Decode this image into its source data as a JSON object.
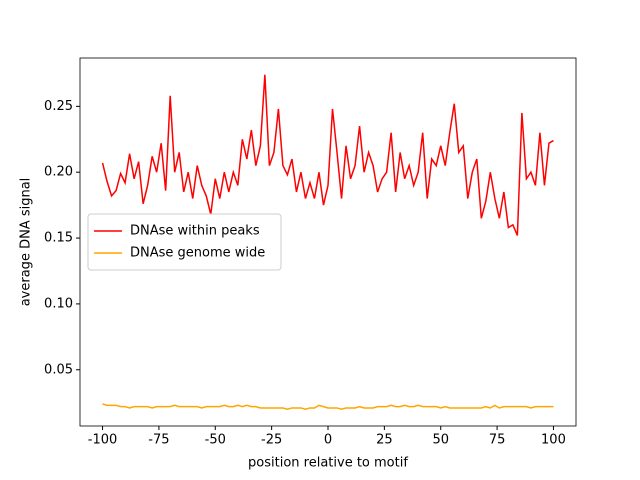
{
  "chart_data": {
    "type": "line",
    "xlabel": "position relative to motif",
    "ylabel": "average DNA signal",
    "x": [
      -100,
      -98,
      -96,
      -94,
      -92,
      -90,
      -88,
      -86,
      -84,
      -82,
      -80,
      -78,
      -76,
      -74,
      -72,
      -70,
      -68,
      -66,
      -64,
      -62,
      -60,
      -58,
      -56,
      -54,
      -52,
      -50,
      -48,
      -46,
      -44,
      -42,
      -40,
      -38,
      -36,
      -34,
      -32,
      -30,
      -28,
      -26,
      -24,
      -22,
      -20,
      -18,
      -16,
      -14,
      -12,
      -10,
      -8,
      -6,
      -4,
      -2,
      0,
      2,
      4,
      6,
      8,
      10,
      12,
      14,
      16,
      18,
      20,
      22,
      24,
      26,
      28,
      30,
      32,
      34,
      36,
      38,
      40,
      42,
      44,
      46,
      48,
      50,
      52,
      54,
      56,
      58,
      60,
      62,
      64,
      66,
      68,
      70,
      72,
      74,
      76,
      78,
      80,
      82,
      84,
      86,
      88,
      90,
      92,
      94,
      96,
      98,
      100
    ],
    "series": [
      {
        "name": "DNAse within peaks",
        "color": "#ff0000",
        "values": [
          0.207,
          0.193,
          0.182,
          0.186,
          0.199,
          0.192,
          0.214,
          0.195,
          0.208,
          0.176,
          0.19,
          0.212,
          0.2,
          0.222,
          0.186,
          0.258,
          0.2,
          0.215,
          0.185,
          0.2,
          0.18,
          0.205,
          0.19,
          0.182,
          0.168,
          0.195,
          0.18,
          0.2,
          0.185,
          0.2,
          0.19,
          0.225,
          0.21,
          0.232,
          0.205,
          0.22,
          0.274,
          0.205,
          0.215,
          0.248,
          0.205,
          0.198,
          0.21,
          0.185,
          0.2,
          0.18,
          0.192,
          0.18,
          0.2,
          0.175,
          0.19,
          0.248,
          0.215,
          0.18,
          0.22,
          0.195,
          0.205,
          0.235,
          0.2,
          0.215,
          0.205,
          0.185,
          0.195,
          0.2,
          0.23,
          0.185,
          0.215,
          0.195,
          0.205,
          0.19,
          0.2,
          0.23,
          0.18,
          0.21,
          0.205,
          0.22,
          0.205,
          0.23,
          0.252,
          0.215,
          0.22,
          0.18,
          0.2,
          0.21,
          0.165,
          0.178,
          0.2,
          0.18,
          0.165,
          0.185,
          0.158,
          0.16,
          0.152,
          0.245,
          0.195,
          0.2,
          0.19,
          0.23,
          0.19,
          0.222,
          0.224
        ]
      },
      {
        "name": "DNAse genome wide",
        "color": "#ffa500",
        "values": [
          0.024,
          0.023,
          0.023,
          0.023,
          0.022,
          0.022,
          0.021,
          0.022,
          0.022,
          0.022,
          0.022,
          0.021,
          0.022,
          0.022,
          0.022,
          0.022,
          0.023,
          0.022,
          0.022,
          0.022,
          0.022,
          0.022,
          0.021,
          0.022,
          0.022,
          0.022,
          0.022,
          0.023,
          0.022,
          0.022,
          0.023,
          0.022,
          0.023,
          0.022,
          0.022,
          0.021,
          0.021,
          0.021,
          0.021,
          0.021,
          0.021,
          0.02,
          0.021,
          0.021,
          0.021,
          0.02,
          0.021,
          0.021,
          0.023,
          0.022,
          0.021,
          0.021,
          0.021,
          0.02,
          0.021,
          0.021,
          0.021,
          0.022,
          0.021,
          0.021,
          0.021,
          0.022,
          0.022,
          0.022,
          0.023,
          0.022,
          0.022,
          0.023,
          0.022,
          0.022,
          0.023,
          0.022,
          0.022,
          0.022,
          0.022,
          0.021,
          0.022,
          0.021,
          0.021,
          0.021,
          0.021,
          0.021,
          0.021,
          0.021,
          0.021,
          0.022,
          0.021,
          0.023,
          0.021,
          0.022,
          0.022,
          0.022,
          0.022,
          0.022,
          0.022,
          0.021,
          0.022,
          0.022,
          0.022,
          0.022,
          0.022
        ]
      }
    ],
    "xlim": [
      -110,
      110
    ],
    "xticks": [
      -100,
      -75,
      -50,
      -25,
      0,
      25,
      50,
      75,
      100
    ],
    "ylim": [
      0.0073,
      0.2867
    ],
    "yticks": [
      0.05,
      {
        "value": 0.1,
        "label": "0.10"
      },
      0.15,
      {
        "value": 0.2,
        "label": "0.20"
      },
      0.25
    ],
    "legend": "center left"
  }
}
